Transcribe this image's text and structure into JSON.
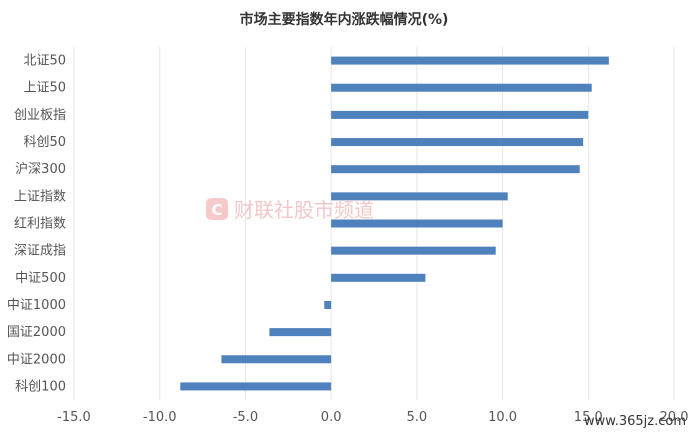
{
  "chart_data": {
    "type": "bar",
    "orientation": "horizontal",
    "title": "市场主要指数年内涨跌幅情况(%)",
    "categories": [
      "北证50",
      "上证50",
      "创业板指",
      "科创50",
      "沪深300",
      "上证指数",
      "红利指数",
      "深证成指",
      "中证500",
      "中证1000",
      "国证2000",
      "中证2000",
      "科创100"
    ],
    "values": [
      16.2,
      15.2,
      15.0,
      14.7,
      14.5,
      10.3,
      10.0,
      9.6,
      5.5,
      -0.4,
      -3.6,
      -6.4,
      -8.8
    ],
    "xlim": [
      -15,
      20
    ],
    "xticks": [
      "-15.0",
      "-10.0",
      "-5.0",
      "0.0",
      "5.0",
      "10.0",
      "15.0",
      "20.0"
    ],
    "grid": true,
    "bar_color": "#4f81bd"
  },
  "watermark": {
    "logo_text": "财联社股市频道",
    "site_text": "www.365jz.com"
  }
}
